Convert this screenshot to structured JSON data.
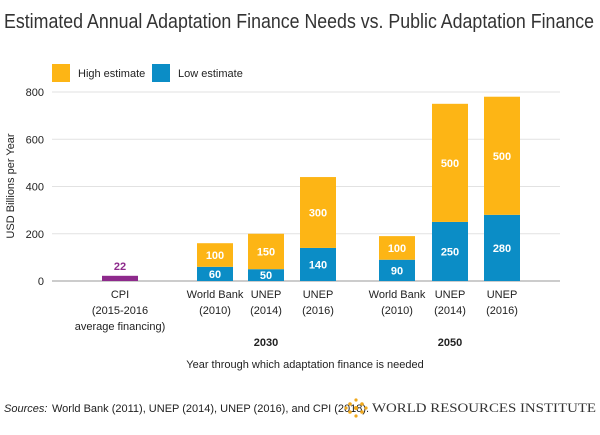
{
  "chart_data": {
    "type": "stacked_bar",
    "title": "Estimated Annual Adaptation Finance Needs vs. Public Adaptation Finance",
    "y_label": "USD Billions per Year",
    "x_label": "Year through which adaptation finance is needed",
    "categories": [
      [
        "CPI",
        "(2015-2016",
        "average financing)"
      ],
      [
        "World Bank",
        "(2010)"
      ],
      [
        "UNEP",
        "(2014)"
      ],
      [
        "UNEP",
        "(2016)"
      ],
      [
        "World Bank",
        "(2010)"
      ],
      [
        "UNEP",
        "(2014)"
      ],
      [
        "UNEP",
        "(2016)"
      ]
    ],
    "groups": [
      "2030",
      "2050"
    ],
    "series": [
      {
        "name": "Low estimate",
        "color": "#0b8dc6",
        "values": [
          null,
          60,
          50,
          140,
          90,
          250,
          280
        ]
      },
      {
        "name": "High estimate",
        "color": "#fdb515",
        "values": [
          null,
          100,
          150,
          300,
          100,
          500,
          500
        ]
      }
    ],
    "other": {
      "color": "#8e2a8c",
      "values": [
        22,
        null,
        null,
        null,
        null,
        null,
        null
      ]
    },
    "ylim": [
      0,
      800
    ],
    "yticks": [
      0,
      200,
      400,
      600,
      800
    ],
    "grid": true,
    "source_label": "Sources:",
    "source": "World Bank (2011), UNEP (2014), UNEP (2016), and CPI (2018).",
    "logo_text": "WORLD RESOURCES INSTITUTE"
  }
}
